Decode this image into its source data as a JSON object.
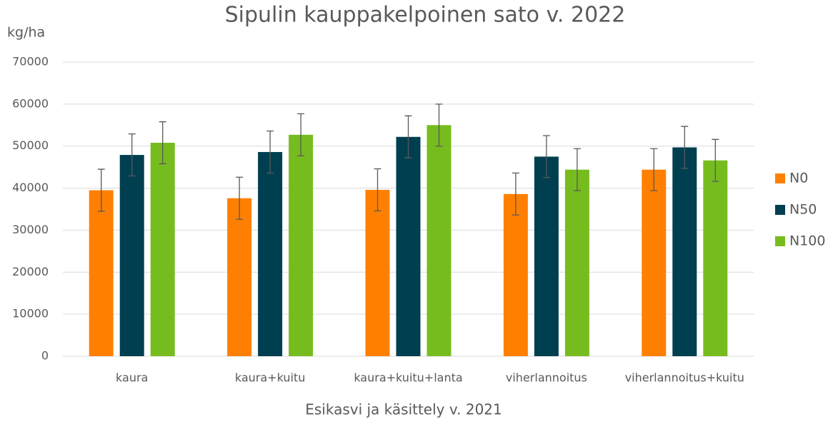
{
  "chart_data": {
    "type": "bar",
    "title": "Sipulin kauppakelpoinen sato v. 2022",
    "y_label": "kg/ha",
    "x_label": "Esikasvi ja käsittely v. 2021",
    "categories": [
      "kaura",
      "kaura+kuitu",
      "kaura+kuitu+lanta",
      "viherlannoitus",
      "viherlannoitus+kuitu"
    ],
    "series": [
      {
        "name": "N0",
        "color": "#ff8000",
        "values": [
          39500,
          37600,
          39600,
          38600,
          44400
        ],
        "errors": [
          5000,
          5000,
          5000,
          5000,
          5000
        ]
      },
      {
        "name": "N50",
        "color": "#003f4f",
        "values": [
          47900,
          48600,
          52200,
          47500,
          49700
        ],
        "errors": [
          5000,
          5000,
          5000,
          5000,
          5000
        ]
      },
      {
        "name": "N100",
        "color": "#77bc1f",
        "values": [
          50800,
          52700,
          55000,
          44400,
          46600
        ],
        "errors": [
          5000,
          5000,
          5000,
          5000,
          5000
        ]
      }
    ],
    "ylim": [
      0,
      70000
    ],
    "yticks": [
      0,
      10000,
      20000,
      30000,
      40000,
      50000,
      60000,
      70000
    ],
    "grid": true,
    "legend": "right"
  }
}
